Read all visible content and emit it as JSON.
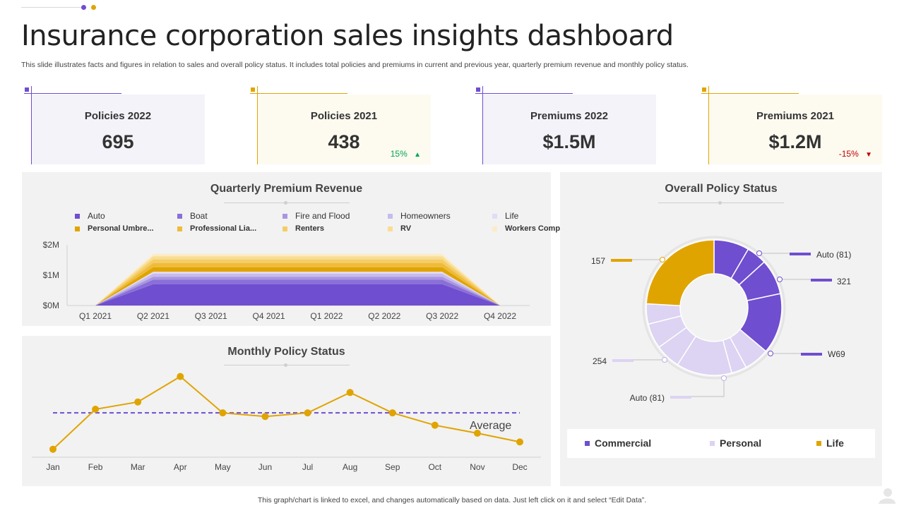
{
  "page": {
    "title": "Insurance corporation sales insights dashboard",
    "subtitle": "This slide illustrates facts and figures in relation to sales and overall policy status. It includes total policies and premiums in current and previous year, quarterly premium revenue and monthly policy status.",
    "footer": "This graph/chart is linked to excel, and changes automatically based on data. Just left click on it and select “Edit Data”."
  },
  "colors": {
    "purple": "#6f4ecf",
    "gold": "#e0a400",
    "light_purple_bg": "#f4f3fa",
    "light_gold_bg": "#fdfaf0",
    "up": "#00a651",
    "down": "#c00000"
  },
  "kpis": [
    {
      "label": "Policies 2022",
      "value": "695",
      "delta": ""
    },
    {
      "label": "Policies 2021",
      "value": "438",
      "delta": "15%",
      "delta_icon": "▲"
    },
    {
      "label": "Premiums 2022",
      "value": "$1.5M",
      "delta": ""
    },
    {
      "label": "Premiums 2021",
      "value": "$1.2M",
      "delta": "-15%",
      "delta_icon": "▼"
    }
  ],
  "chart_data": [
    {
      "type": "area",
      "stacked": true,
      "title": "Quarterly Premium Revenue",
      "categories": [
        "Q1 2021",
        "Q2 2021",
        "Q3 2021",
        "Q4 2021",
        "Q1 2022",
        "Q2 2022",
        "Q3 2022",
        "Q4 2022"
      ],
      "yticks": [
        "$0M",
        "$1M",
        "$2M"
      ],
      "ylim": [
        0,
        2000000
      ],
      "legend_position": "top",
      "series": [
        {
          "name": "Auto",
          "color": "#6f4ecf",
          "values": [
            0,
            700000,
            700000,
            700000,
            700000,
            700000,
            700000,
            0
          ]
        },
        {
          "name": "Boat",
          "color": "#8a6fd8",
          "values": [
            0,
            150000,
            150000,
            150000,
            150000,
            150000,
            150000,
            0
          ]
        },
        {
          "name": "Fire and Flood",
          "color": "#a996e2",
          "values": [
            0,
            100000,
            100000,
            100000,
            100000,
            100000,
            100000,
            0
          ]
        },
        {
          "name": "Homeowners",
          "color": "#c7bbec",
          "values": [
            0,
            100000,
            100000,
            100000,
            100000,
            100000,
            100000,
            0
          ]
        },
        {
          "name": "Life",
          "color": "#e2dcf5",
          "values": [
            0,
            60000,
            60000,
            60000,
            60000,
            60000,
            60000,
            0
          ]
        },
        {
          "name": "Personal Umbre...",
          "color": "#e0a400",
          "values": [
            0,
            150000,
            150000,
            150000,
            150000,
            150000,
            150000,
            0
          ]
        },
        {
          "name": "Professional Lia...",
          "color": "#efbb3a",
          "values": [
            0,
            140000,
            140000,
            140000,
            140000,
            140000,
            140000,
            0
          ]
        },
        {
          "name": "Renters",
          "color": "#f5cd66",
          "values": [
            0,
            120000,
            120000,
            120000,
            120000,
            120000,
            120000,
            0
          ]
        },
        {
          "name": "RV",
          "color": "#f9dd93",
          "values": [
            0,
            100000,
            100000,
            100000,
            100000,
            100000,
            100000,
            0
          ]
        },
        {
          "name": "Workers Comp",
          "color": "#fcecc5",
          "values": [
            0,
            80000,
            80000,
            80000,
            80000,
            80000,
            80000,
            0
          ]
        }
      ]
    },
    {
      "type": "line",
      "title": "Monthly Policy Status",
      "categories": [
        "Jan",
        "Feb",
        "Mar",
        "Apr",
        "May",
        "Jun",
        "Jul",
        "Aug",
        "Sep",
        "Oct",
        "Nov",
        "Dec"
      ],
      "series": [
        {
          "name": "Policies",
          "color": "#e0a400",
          "values": [
            10,
            65,
            75,
            110,
            60,
            55,
            60,
            88,
            60,
            43,
            32,
            20
          ]
        }
      ],
      "average": {
        "label": "Average",
        "value": 60,
        "color": "#6f4ecf"
      },
      "ylim": [
        0,
        130
      ]
    },
    {
      "type": "pie",
      "variant": "donut",
      "title": "Overall Policy Status",
      "slices": [
        {
          "group": "Commercial",
          "value": 7,
          "color": "#6f4ecf"
        },
        {
          "group": "Commercial",
          "value": 4,
          "color": "#6f4ecf"
        },
        {
          "group": "Commercial",
          "value": 7,
          "color": "#6f4ecf"
        },
        {
          "group": "Commercial",
          "value": 12,
          "color": "#6f4ecf"
        },
        {
          "group": "Personal",
          "value": 5,
          "color": "#ddd3f2"
        },
        {
          "group": "Personal",
          "value": 3,
          "color": "#ddd3f2"
        },
        {
          "group": "Personal",
          "value": 11,
          "color": "#ddd3f2"
        },
        {
          "group": "Personal",
          "value": 5,
          "color": "#ddd3f2"
        },
        {
          "group": "Personal",
          "value": 5,
          "color": "#ddd3f2"
        },
        {
          "group": "Personal",
          "value": 4,
          "color": "#ddd3f2"
        },
        {
          "group": "Life",
          "value": 20,
          "color": "#e0a400"
        }
      ],
      "callouts": [
        "Auto (81)",
        "321",
        "W69",
        "157",
        "254",
        "Auto (81)"
      ],
      "legend": [
        {
          "name": "Commercial",
          "color": "#6f4ecf"
        },
        {
          "name": "Personal",
          "color": "#ddd3f2"
        },
        {
          "name": "Life",
          "color": "#e0a400"
        }
      ],
      "legend_position": "bottom"
    }
  ]
}
